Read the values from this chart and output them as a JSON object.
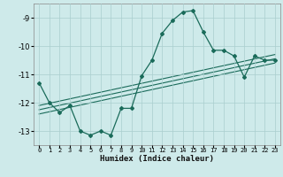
{
  "xlabel": "Humidex (Indice chaleur)",
  "ylabel": "",
  "bg_color": "#ceeaea",
  "grid_color": "#aacece",
  "line_color": "#1a6b5a",
  "xlim": [
    -0.5,
    23.5
  ],
  "ylim": [
    -13.5,
    -8.5
  ],
  "yticks": [
    -13,
    -12,
    -11,
    -10,
    -9
  ],
  "xticks": [
    0,
    1,
    2,
    3,
    4,
    5,
    6,
    7,
    8,
    9,
    10,
    11,
    12,
    13,
    14,
    15,
    16,
    17,
    18,
    19,
    20,
    21,
    22,
    23
  ],
  "main_x": [
    0,
    1,
    2,
    3,
    4,
    5,
    6,
    7,
    8,
    9,
    10,
    11,
    12,
    13,
    14,
    15,
    16,
    17,
    18,
    19,
    20,
    21,
    22,
    23
  ],
  "main_y": [
    -11.3,
    -12.0,
    -12.35,
    -12.1,
    -13.0,
    -13.15,
    -13.0,
    -13.15,
    -12.2,
    -12.2,
    -11.05,
    -10.5,
    -9.55,
    -9.1,
    -8.8,
    -8.75,
    -9.5,
    -10.15,
    -10.15,
    -10.35,
    -11.1,
    -10.35,
    -10.5,
    -10.5
  ],
  "line1_x": [
    0,
    23
  ],
  "line1_y": [
    -12.1,
    -10.3
  ],
  "line2_x": [
    0,
    23
  ],
  "line2_y": [
    -12.25,
    -10.45
  ],
  "line3_x": [
    0,
    23
  ],
  "line3_y": [
    -12.4,
    -10.6
  ]
}
